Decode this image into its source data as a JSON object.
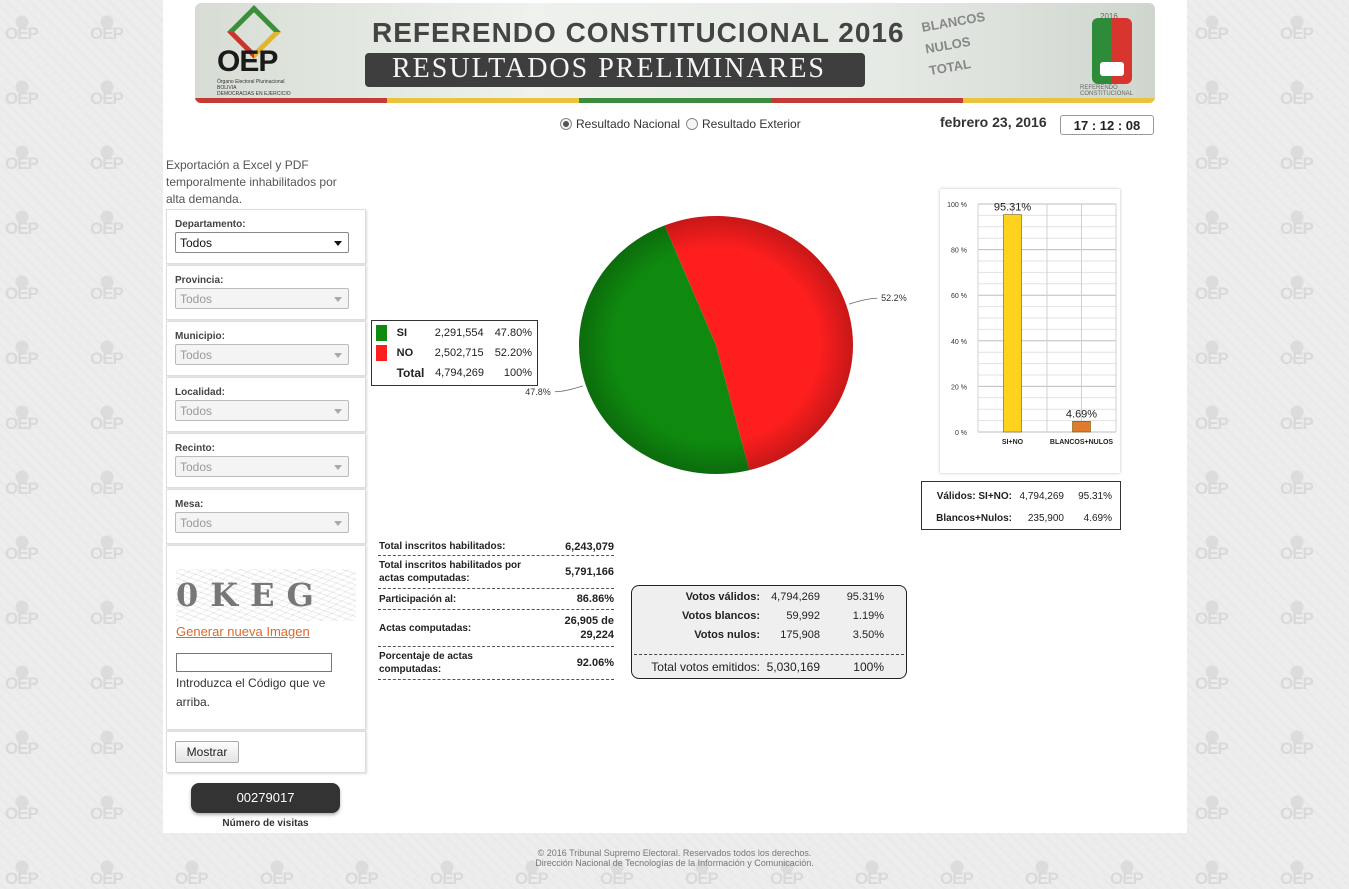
{
  "colors": {
    "si": "#0f8a0f",
    "no": "#ff1e1e",
    "bar_valid": "#ffd21e",
    "bar_blank": "#e07a2e",
    "link": "#d86a2e"
  },
  "watermark_text": "OEP",
  "banner": {
    "logo_text": "OEP",
    "logo_sub": "Órgano Electoral Plurinacional BOLIVIA",
    "logo_motto": "DEMOCRACIAS EN EJERCICIO",
    "title": "REFERENDO CONSTITUCIONAL 2016",
    "subtitle": "RESULTADOS PRELIMINARES",
    "ballot_words": [
      "BLANCOS",
      "NULOS",
      "TOTAL"
    ],
    "flag_year": "2016",
    "flag_label": "REFERENDO CONSTITUCIONAL"
  },
  "result_scope": {
    "options": [
      "Resultado Nacional",
      "Resultado Exterior"
    ],
    "selected": "Resultado Nacional"
  },
  "date": "febrero 23, 2016",
  "clock": "17 : 12 : 08",
  "export_note": "Exportación a Excel y PDF temporalmente inhabilitados por alta demanda.",
  "filters": [
    {
      "label": "Departamento:",
      "value": "Todos",
      "enabled": true
    },
    {
      "label": "Provincia:",
      "value": "Todos",
      "enabled": false
    },
    {
      "label": "Municipio:",
      "value": "Todos",
      "enabled": false
    },
    {
      "label": "Localidad:",
      "value": "Todos",
      "enabled": false
    },
    {
      "label": "Recinto:",
      "value": "Todos",
      "enabled": false
    },
    {
      "label": "Mesa:",
      "value": "Todos",
      "enabled": false
    }
  ],
  "captcha": {
    "image_text": "0KEG",
    "regen_link": "Generar nueva Imagen",
    "input_value": "",
    "hint": "Introduzca el Código que ve arriba."
  },
  "submit_label": "Mostrar",
  "visits": {
    "count": "00279017",
    "label": "Número de visitas"
  },
  "legend": {
    "rows": [
      {
        "name": "SI",
        "votes": "2,291,554",
        "pct": "47.80%"
      },
      {
        "name": "NO",
        "votes": "2,502,715",
        "pct": "52.20%"
      },
      {
        "name": "Total",
        "votes": "4,794,269",
        "pct": "100%"
      }
    ]
  },
  "chart_data": [
    {
      "type": "pie",
      "title": "",
      "slices": [
        {
          "name": "SI",
          "value": 47.8,
          "label": "47.8%"
        },
        {
          "name": "NO",
          "value": 52.2,
          "label": "52.2%"
        }
      ]
    },
    {
      "type": "bar",
      "title": "",
      "categories": [
        "SI+NO",
        "BLANCOS+NULOS"
      ],
      "values": [
        95.31,
        4.69
      ],
      "data_labels": [
        "95.31%",
        "4.69%"
      ],
      "ylim": [
        0,
        100
      ],
      "yticks": [
        "0 %",
        "20 %",
        "40 %",
        "60 %",
        "80 %",
        "100 %"
      ],
      "grid": true
    }
  ],
  "validity_table": [
    {
      "label": "Válidos: SI+NO:",
      "votes": "4,794,269",
      "pct": "95.31%"
    },
    {
      "label": "Blancos+Nulos:",
      "votes": "235,900",
      "pct": "4.69%"
    }
  ],
  "stats": [
    {
      "label": "Total inscritos habilitados:",
      "value": "6,243,079"
    },
    {
      "label": "Total inscritos habilitados por actas computadas:",
      "value": "5,791,166"
    },
    {
      "label": "Participación al:",
      "value": "86.86%"
    },
    {
      "label": "Actas computadas:",
      "value": "26,905 de 29,224"
    },
    {
      "label": "Porcentaje de actas computadas:",
      "value": "92.06%"
    }
  ],
  "votes": {
    "rows": [
      {
        "label": "Votos válidos:",
        "votes": "4,794,269",
        "pct": "95.31%"
      },
      {
        "label": "Votos blancos:",
        "votes": "59,992",
        "pct": "1.19%"
      },
      {
        "label": "Votos nulos:",
        "votes": "175,908",
        "pct": "3.50%"
      }
    ],
    "total": {
      "label": "Total votos emitidos:",
      "votes": "5,030,169",
      "pct": "100%"
    }
  },
  "footer": {
    "line1": "© 2016 Tribunal Supremo Electoral. Reservados todos los derechos.",
    "line2": "Dirección Nacional de Tecnologías de la Información y Comunicación."
  }
}
